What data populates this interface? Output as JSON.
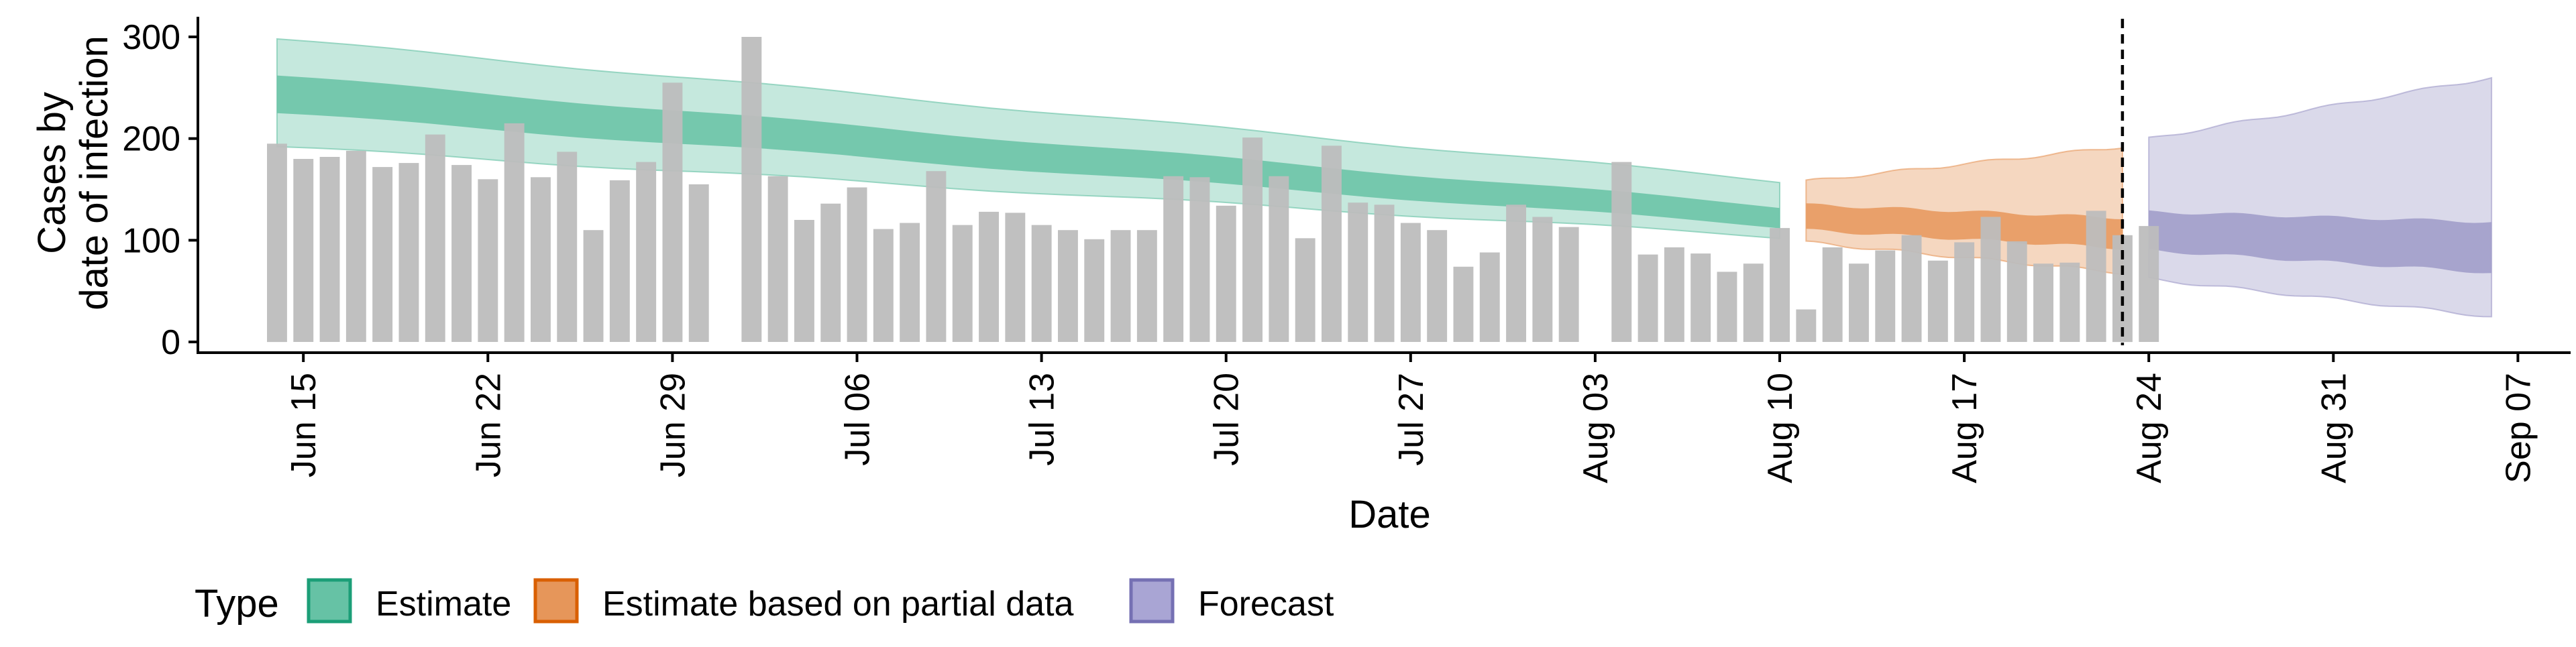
{
  "chart_data": {
    "type": "bar",
    "xlabel": "Date",
    "ylabel_lines": [
      "Cases by",
      "date of infection"
    ],
    "ylim": [
      0,
      320
    ],
    "y_ticks": [
      0,
      100,
      200,
      300
    ],
    "x_range": [
      "2020-06-11",
      "2020-09-09"
    ],
    "x_ticks": [
      {
        "date": "2020-06-15",
        "label": "Jun 15"
      },
      {
        "date": "2020-06-22",
        "label": "Jun 22"
      },
      {
        "date": "2020-06-29",
        "label": "Jun 29"
      },
      {
        "date": "2020-07-06",
        "label": "Jul 06"
      },
      {
        "date": "2020-07-13",
        "label": "Jul 13"
      },
      {
        "date": "2020-07-20",
        "label": "Jul 20"
      },
      {
        "date": "2020-07-27",
        "label": "Jul 27"
      },
      {
        "date": "2020-08-03",
        "label": "Aug 03"
      },
      {
        "date": "2020-08-10",
        "label": "Aug 10"
      },
      {
        "date": "2020-08-17",
        "label": "Aug 17"
      },
      {
        "date": "2020-08-24",
        "label": "Aug 24"
      },
      {
        "date": "2020-08-31",
        "label": "Aug 31"
      },
      {
        "date": "2020-09-07",
        "label": "Sep 07"
      }
    ],
    "bars": {
      "start_date": "2020-06-14",
      "color": "#bdbdbd",
      "values": [
        195,
        180,
        182,
        188,
        172,
        176,
        204,
        174,
        160,
        215,
        162,
        187,
        110,
        159,
        177,
        255,
        155,
        null,
        300,
        163,
        120,
        136,
        152,
        111,
        117,
        168,
        115,
        128,
        127,
        115,
        110,
        101,
        110,
        110,
        163,
        162,
        134,
        201,
        163,
        102,
        193,
        137,
        135,
        117,
        110,
        74,
        88,
        135,
        123,
        113,
        null,
        177,
        86,
        93,
        87,
        69,
        77,
        112,
        32,
        93,
        77,
        90,
        105,
        80,
        98,
        123,
        99,
        77,
        78,
        129,
        105,
        114
      ]
    },
    "vline_date": "2020-08-23",
    "series": [
      {
        "name": "Estimate",
        "color": "#66c2a5",
        "start_date": "2020-06-14",
        "end_date": "2020-08-10",
        "median_inner_start": [
          225,
          262
        ],
        "median_inner_end": [
          113,
          133
        ],
        "outer_start": [
          192,
          298
        ],
        "outer_end": [
          103,
          158
        ]
      },
      {
        "name": "Estimate based on partial data",
        "color": "#e6965a",
        "start_date": "2020-08-11",
        "end_date": "2020-08-23",
        "median_inner_start": [
          110,
          135
        ],
        "median_inner_end": [
          92,
          122
        ],
        "outer_start": [
          98,
          158
        ],
        "outer_end": [
          68,
          192
        ]
      },
      {
        "name": "Forecast",
        "color": "#9e9ac8",
        "start_date": "2020-08-24",
        "end_date": "2020-09-06",
        "median_inner_start": [
          90,
          128
        ],
        "median_inner_end": [
          68,
          118
        ],
        "outer_start": [
          62,
          200
        ],
        "outer_end": [
          25,
          260
        ]
      }
    ],
    "legend": {
      "title": "Type",
      "position": "bottom",
      "items": [
        {
          "label": "Estimate",
          "color": "#66c2a5",
          "border": "#1b9e77"
        },
        {
          "label": "Estimate based on partial data",
          "color": "#e6965a",
          "border": "#d95f02"
        },
        {
          "label": "Forecast",
          "color": "#a9a5d4",
          "border": "#7570b3"
        }
      ]
    }
  }
}
